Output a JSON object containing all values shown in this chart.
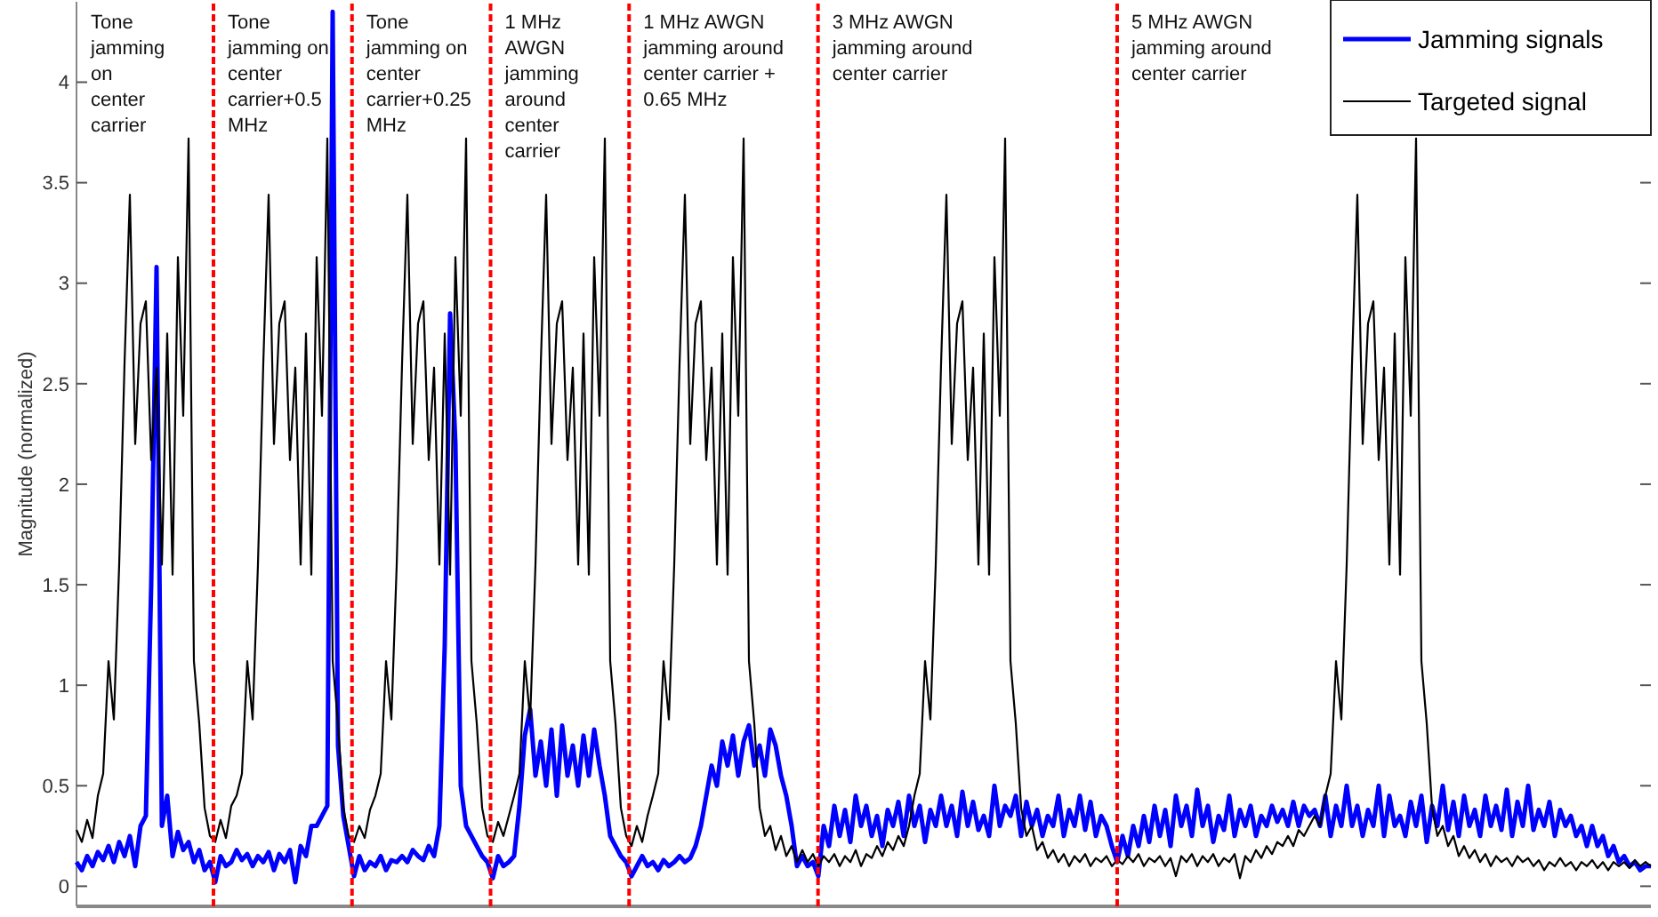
{
  "chart_data": {
    "type": "line",
    "ylabel": "Magnitude (normalized)",
    "ylim": [
      -0.1,
      4.4
    ],
    "yticks": [
      0,
      0.5,
      1,
      1.5,
      2,
      2.5,
      3,
      3.5,
      4
    ],
    "tick_labels": "y",
    "legend": "top right",
    "marker": "none",
    "line_style": "solid",
    "categories": [
      null,
      null,
      null,
      null,
      null,
      null,
      null,
      null,
      null,
      null,
      null,
      null,
      null,
      null,
      null,
      null,
      null,
      null,
      null,
      null,
      null,
      null,
      null,
      null,
      null,
      null,
      null,
      null,
      null,
      null,
      null,
      null,
      null,
      null,
      null,
      null,
      null,
      null,
      null,
      null,
      null,
      null,
      null,
      null,
      null,
      null,
      null,
      null,
      null,
      null,
      null,
      null,
      null,
      null,
      null,
      null,
      null,
      null,
      null,
      null,
      null,
      null,
      null,
      null,
      null,
      null,
      null,
      null,
      null,
      null,
      null,
      null,
      null,
      null,
      null,
      null,
      null,
      null,
      null,
      null,
      null,
      null,
      null,
      null,
      null,
      null,
      null,
      null,
      null,
      null,
      null,
      null,
      null,
      null,
      null,
      null,
      null,
      null,
      null,
      null,
      null,
      null,
      null,
      null,
      null,
      null,
      null,
      null,
      null,
      null,
      null,
      null,
      null,
      null,
      null,
      null,
      null,
      null,
      null,
      null,
      null,
      null,
      null,
      null,
      null,
      null,
      null,
      null,
      null,
      null,
      null,
      null,
      null,
      null,
      null,
      null,
      null,
      null,
      null,
      null,
      null,
      null,
      null,
      null,
      null,
      null,
      null,
      null,
      null,
      null,
      null,
      null,
      null,
      null,
      null,
      null,
      null,
      null,
      null,
      null,
      null,
      null,
      null,
      null,
      null,
      null,
      null,
      null,
      null,
      null,
      null,
      null,
      null,
      null,
      null,
      null,
      null,
      null,
      null,
      null,
      null,
      null,
      null,
      null,
      null,
      null,
      null,
      null,
      null,
      null,
      null,
      null,
      null,
      null,
      null,
      null,
      null,
      null,
      null,
      null,
      null,
      null,
      null,
      null,
      null,
      null,
      null,
      null,
      null,
      null,
      null,
      null,
      null,
      null,
      null,
      null,
      null,
      null,
      null,
      null,
      null,
      null,
      null,
      null,
      null,
      null,
      null,
      null,
      null,
      null,
      null,
      null,
      null,
      null,
      null,
      null,
      null,
      null,
      null,
      null,
      null,
      null,
      null,
      null,
      null,
      null,
      null,
      null,
      null,
      null,
      null,
      null,
      null,
      null,
      null,
      null,
      null,
      null,
      null,
      null,
      null,
      null,
      null,
      null,
      null,
      null,
      null,
      null,
      null,
      null,
      null,
      null,
      null,
      null,
      null,
      null,
      null,
      null,
      null,
      null,
      null,
      null,
      null,
      null,
      null,
      null,
      null,
      null,
      null,
      null,
      null,
      null,
      null,
      null,
      null,
      null
    ],
    "annotations": [
      "Tone\njamming\non\ncenter\ncarrier",
      "Tone\njamming on\ncenter\ncarrier+0.5\nMHz",
      "Tone\njamming on\ncenter\ncarrier+0.25\nMHz",
      "1 MHz\nAWGN\njamming\naround\ncenter\ncarrier",
      "1 MHz AWGN\njamming around\ncenter carrier +\n0.65 MHz",
      "3 MHz AWGN\njamming around\ncenter carrier",
      "5 MHz AWGN\njamming around\ncenter carrier"
    ],
    "series": [
      {
        "name": "Jamming signals",
        "color": "#0000ff",
        "values": [
          0.12,
          0.08,
          0.15,
          0.1,
          0.17,
          0.13,
          0.2,
          0.12,
          0.22,
          0.15,
          0.25,
          0.1,
          0.3,
          0.35,
          1.5,
          3.08,
          0.3,
          0.45,
          0.15,
          0.27,
          0.18,
          0.22,
          0.12,
          0.18,
          0.08,
          0.12,
          0.02,
          0.15,
          0.1,
          0.12,
          0.18,
          0.13,
          0.16,
          0.1,
          0.15,
          0.12,
          0.17,
          0.08,
          0.16,
          0.12,
          0.18,
          0.02,
          0.2,
          0.15,
          0.3,
          0.3,
          0.35,
          0.4,
          4.35,
          0.7,
          0.35,
          0.2,
          0.05,
          0.15,
          0.08,
          0.12,
          0.1,
          0.15,
          0.08,
          0.13,
          0.12,
          0.15,
          0.12,
          0.18,
          0.15,
          0.13,
          0.2,
          0.15,
          0.3,
          1.2,
          2.85,
          2.2,
          0.5,
          0.3,
          0.25,
          0.2,
          0.15,
          0.12,
          0.04,
          0.15,
          0.1,
          0.12,
          0.15,
          0.4,
          0.75,
          0.88,
          0.55,
          0.72,
          0.5,
          0.78,
          0.45,
          0.8,
          0.55,
          0.7,
          0.5,
          0.75,
          0.55,
          0.78,
          0.6,
          0.45,
          0.25,
          0.2,
          0.15,
          0.12,
          0.05,
          0.1,
          0.15,
          0.1,
          0.12,
          0.08,
          0.13,
          0.1,
          0.12,
          0.15,
          0.12,
          0.14,
          0.2,
          0.3,
          0.45,
          0.6,
          0.5,
          0.72,
          0.6,
          0.75,
          0.55,
          0.72,
          0.8,
          0.6,
          0.7,
          0.55,
          0.78,
          0.7,
          0.55,
          0.45,
          0.3,
          0.1,
          0.15,
          0.1,
          0.12,
          0.05,
          0.3,
          0.2,
          0.4,
          0.25,
          0.38,
          0.22,
          0.45,
          0.3,
          0.4,
          0.25,
          0.35,
          0.2,
          0.38,
          0.3,
          0.42,
          0.25,
          0.45,
          0.3,
          0.4,
          0.22,
          0.38,
          0.3,
          0.45,
          0.3,
          0.4,
          0.25,
          0.47,
          0.3,
          0.42,
          0.28,
          0.35,
          0.25,
          0.5,
          0.3,
          0.4,
          0.35,
          0.45,
          0.25,
          0.42,
          0.3,
          0.38,
          0.25,
          0.35,
          0.3,
          0.45,
          0.25,
          0.38,
          0.3,
          0.45,
          0.28,
          0.42,
          0.25,
          0.35,
          0.3,
          0.2,
          0.12,
          0.25,
          0.15,
          0.3,
          0.2,
          0.35,
          0.22,
          0.4,
          0.25,
          0.38,
          0.2,
          0.45,
          0.3,
          0.4,
          0.25,
          0.48,
          0.3,
          0.4,
          0.22,
          0.35,
          0.28,
          0.45,
          0.25,
          0.38,
          0.3,
          0.4,
          0.25,
          0.35,
          0.3,
          0.4,
          0.32,
          0.38,
          0.3,
          0.42,
          0.3,
          0.4,
          0.35,
          0.38,
          0.3,
          0.45,
          0.25,
          0.4,
          0.3,
          0.5,
          0.3,
          0.4,
          0.25,
          0.38,
          0.3,
          0.5,
          0.25,
          0.45,
          0.3,
          0.35,
          0.25,
          0.42,
          0.3,
          0.45,
          0.22,
          0.4,
          0.3,
          0.5,
          0.28,
          0.42,
          0.25,
          0.45,
          0.3,
          0.38,
          0.25,
          0.45,
          0.3,
          0.4,
          0.28,
          0.48,
          0.25,
          0.42,
          0.3,
          0.5,
          0.28,
          0.38,
          0.3,
          0.42,
          0.25,
          0.38,
          0.3,
          0.35,
          0.25,
          0.3,
          0.2,
          0.3,
          0.2,
          0.25,
          0.15,
          0.2,
          0.12,
          0.15,
          0.1,
          0.12,
          0.08,
          0.1,
          0.1
        ]
      },
      {
        "name": "Targeted signal",
        "color": "#000000",
        "values": [
          0.28,
          0.22,
          0.33,
          0.24,
          0.45,
          0.56,
          1.12,
          0.83,
          1.6,
          2.6,
          3.44,
          2.2,
          2.8,
          2.91,
          2.12,
          2.58,
          1.6,
          2.75,
          1.55,
          3.13,
          2.34,
          3.72,
          1.12,
          0.81,
          0.39,
          0.25,
          0.22,
          0.33,
          0.24,
          0.4,
          0.45,
          0.56,
          1.12,
          0.83,
          1.6,
          2.6,
          3.44,
          2.2,
          2.8,
          2.91,
          2.12,
          2.58,
          1.6,
          2.75,
          1.55,
          3.13,
          2.34,
          3.72,
          1.12,
          0.81,
          0.39,
          0.25,
          0.22,
          0.3,
          0.24,
          0.38,
          0.45,
          0.56,
          1.12,
          0.83,
          1.6,
          2.6,
          3.44,
          2.2,
          2.8,
          2.91,
          2.12,
          2.58,
          1.6,
          2.75,
          1.55,
          3.13,
          2.34,
          3.72,
          1.12,
          0.81,
          0.39,
          0.25,
          0.22,
          0.32,
          0.25,
          0.35,
          0.45,
          0.56,
          1.12,
          0.83,
          1.6,
          2.6,
          3.44,
          2.2,
          2.8,
          2.91,
          2.12,
          2.58,
          1.6,
          2.75,
          1.55,
          3.13,
          2.34,
          3.72,
          1.12,
          0.81,
          0.39,
          0.25,
          0.2,
          0.3,
          0.22,
          0.35,
          0.45,
          0.56,
          1.12,
          0.83,
          1.6,
          2.6,
          3.44,
          2.2,
          2.8,
          2.91,
          2.12,
          2.58,
          1.6,
          2.75,
          1.55,
          3.13,
          2.34,
          3.72,
          1.12,
          0.81,
          0.39,
          0.25,
          0.3,
          0.18,
          0.25,
          0.15,
          0.2,
          0.12,
          0.18,
          0.12,
          0.16,
          0.1,
          0.15,
          0.12,
          0.16,
          0.1,
          0.15,
          0.12,
          0.18,
          0.1,
          0.16,
          0.14,
          0.2,
          0.15,
          0.22,
          0.18,
          0.25,
          0.2,
          0.3,
          0.45,
          0.56,
          1.12,
          0.83,
          1.6,
          2.6,
          3.44,
          2.2,
          2.8,
          2.91,
          2.12,
          2.58,
          1.6,
          2.75,
          1.55,
          3.13,
          2.34,
          3.72,
          1.12,
          0.81,
          0.39,
          0.25,
          0.3,
          0.18,
          0.22,
          0.14,
          0.18,
          0.12,
          0.16,
          0.1,
          0.15,
          0.12,
          0.16,
          0.1,
          0.14,
          0.12,
          0.15,
          0.1,
          0.13,
          0.11,
          0.15,
          0.12,
          0.16,
          0.1,
          0.14,
          0.12,
          0.15,
          0.1,
          0.14,
          0.05,
          0.15,
          0.12,
          0.16,
          0.1,
          0.15,
          0.12,
          0.16,
          0.1,
          0.14,
          0.12,
          0.16,
          0.04,
          0.15,
          0.12,
          0.18,
          0.14,
          0.2,
          0.16,
          0.22,
          0.2,
          0.25,
          0.2,
          0.28,
          0.25,
          0.3,
          0.35,
          0.3,
          0.45,
          0.56,
          1.12,
          0.83,
          1.6,
          2.6,
          3.44,
          2.2,
          2.8,
          2.91,
          2.12,
          2.58,
          1.6,
          2.75,
          1.55,
          3.13,
          2.34,
          3.72,
          1.12,
          0.81,
          0.39,
          0.25,
          0.3,
          0.2,
          0.25,
          0.15,
          0.2,
          0.14,
          0.18,
          0.12,
          0.16,
          0.1,
          0.15,
          0.12,
          0.14,
          0.1,
          0.15,
          0.12,
          0.14,
          0.1,
          0.13,
          0.08,
          0.12,
          0.1,
          0.14,
          0.1,
          0.12,
          0.08,
          0.12,
          0.1,
          0.13,
          0.09,
          0.12,
          0.08,
          0.12,
          0.1,
          0.12,
          0.09,
          0.13,
          0.1,
          0.12,
          0.1
        ]
      }
    ]
  }
}
